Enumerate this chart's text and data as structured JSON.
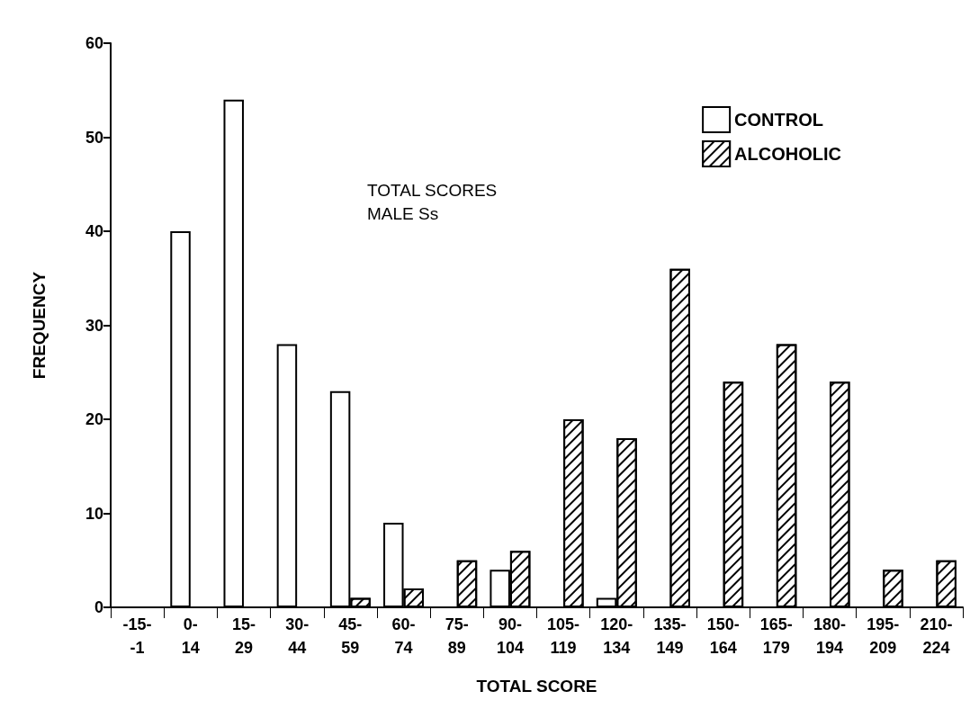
{
  "chart_data": {
    "type": "bar",
    "title": "TOTAL SCORES\nMALE Ss",
    "xlabel": "TOTAL SCORE",
    "ylabel": "FREQUENCY",
    "categories": [
      "-15-\n-1",
      "0-\n14",
      "15-\n29",
      "30-\n44",
      "45-\n59",
      "60-\n74",
      "75-\n89",
      "90-\n104",
      "105-\n119",
      "120-\n134",
      "135-\n149",
      "150-\n164",
      "165-\n179",
      "180-\n194",
      "195-\n209",
      "210-\n224"
    ],
    "series": [
      {
        "name": "CONTROL",
        "color": "#ffffff",
        "values": [
          null,
          40,
          54,
          28,
          23,
          9,
          null,
          4,
          null,
          1,
          null,
          null,
          null,
          null,
          null,
          null
        ]
      },
      {
        "name": "ALCOHOLIC",
        "color": "#000000",
        "values": [
          null,
          null,
          null,
          null,
          1,
          2,
          5,
          6,
          20,
          18,
          36,
          24,
          28,
          24,
          4,
          5
        ]
      }
    ],
    "ylim": [
      0,
      60
    ],
    "yticks": [
      0,
      10,
      20,
      30,
      40,
      50,
      60
    ],
    "grid": false,
    "legend": "top right"
  }
}
